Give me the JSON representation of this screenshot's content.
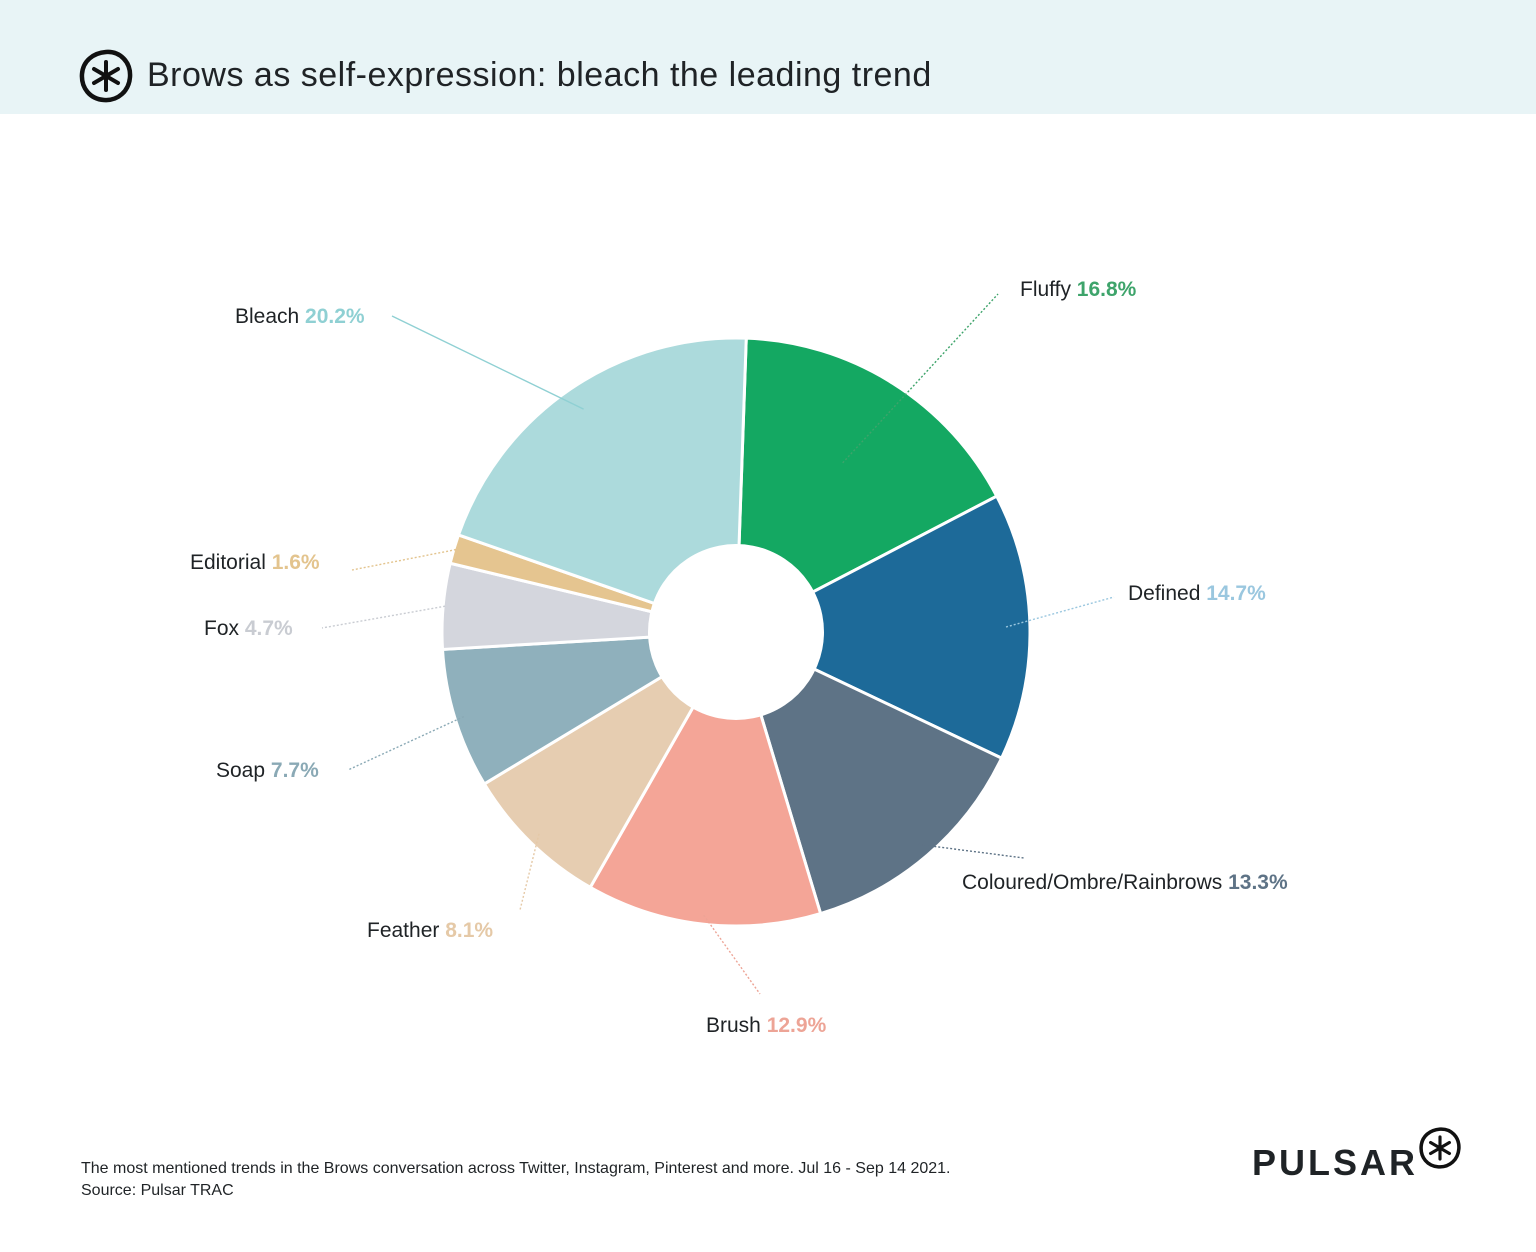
{
  "header": {
    "title": "Brows as self-expression: bleach the leading trend",
    "logo_icon": "pulsar-asterisk-icon"
  },
  "footer": {
    "note": "The most mentioned trends in the Brows conversation across Twitter, Instagram, Pinterest and more. Jul 16 - Sep 14 2021.",
    "source": "Source: Pulsar TRAC",
    "brand": "PULSAR"
  },
  "chart_data": {
    "type": "pie",
    "donut": true,
    "title": "Brows as self-expression: bleach the leading trend",
    "slices": [
      {
        "label": "Fluffy",
        "value": 16.8,
        "value_label": "16.8%",
        "color": "#14a862",
        "label_color": "#3ea46b"
      },
      {
        "label": "Defined",
        "value": 14.7,
        "value_label": "14.7%",
        "color": "#1d6a99",
        "label_color": "#9ac7df"
      },
      {
        "label": "Coloured/Ombre/Rainbrows",
        "value": 13.3,
        "value_label": "13.3%",
        "color": "#5e7386",
        "label_color": "#5e7386"
      },
      {
        "label": "Brush",
        "value": 12.9,
        "value_label": "12.9%",
        "color": "#f4a597",
        "label_color": "#eda496"
      },
      {
        "label": "Feather",
        "value": 8.1,
        "value_label": "8.1%",
        "color": "#e6cdb1",
        "label_color": "#e5c9a7"
      },
      {
        "label": "Soap",
        "value": 7.7,
        "value_label": "7.7%",
        "color": "#8fb0bc",
        "label_color": "#8aa9b5"
      },
      {
        "label": "Fox",
        "value": 4.7,
        "value_label": "4.7%",
        "color": "#d4d6dd",
        "label_color": "#c9ccd2"
      },
      {
        "label": "Editorial",
        "value": 1.6,
        "value_label": "1.6%",
        "color": "#e5c590",
        "label_color": "#e3c48e"
      },
      {
        "label": "Bleach",
        "value": 20.2,
        "value_label": "20.2%",
        "color": "#acdadc",
        "label_color": "#8fd0d3"
      }
    ]
  }
}
